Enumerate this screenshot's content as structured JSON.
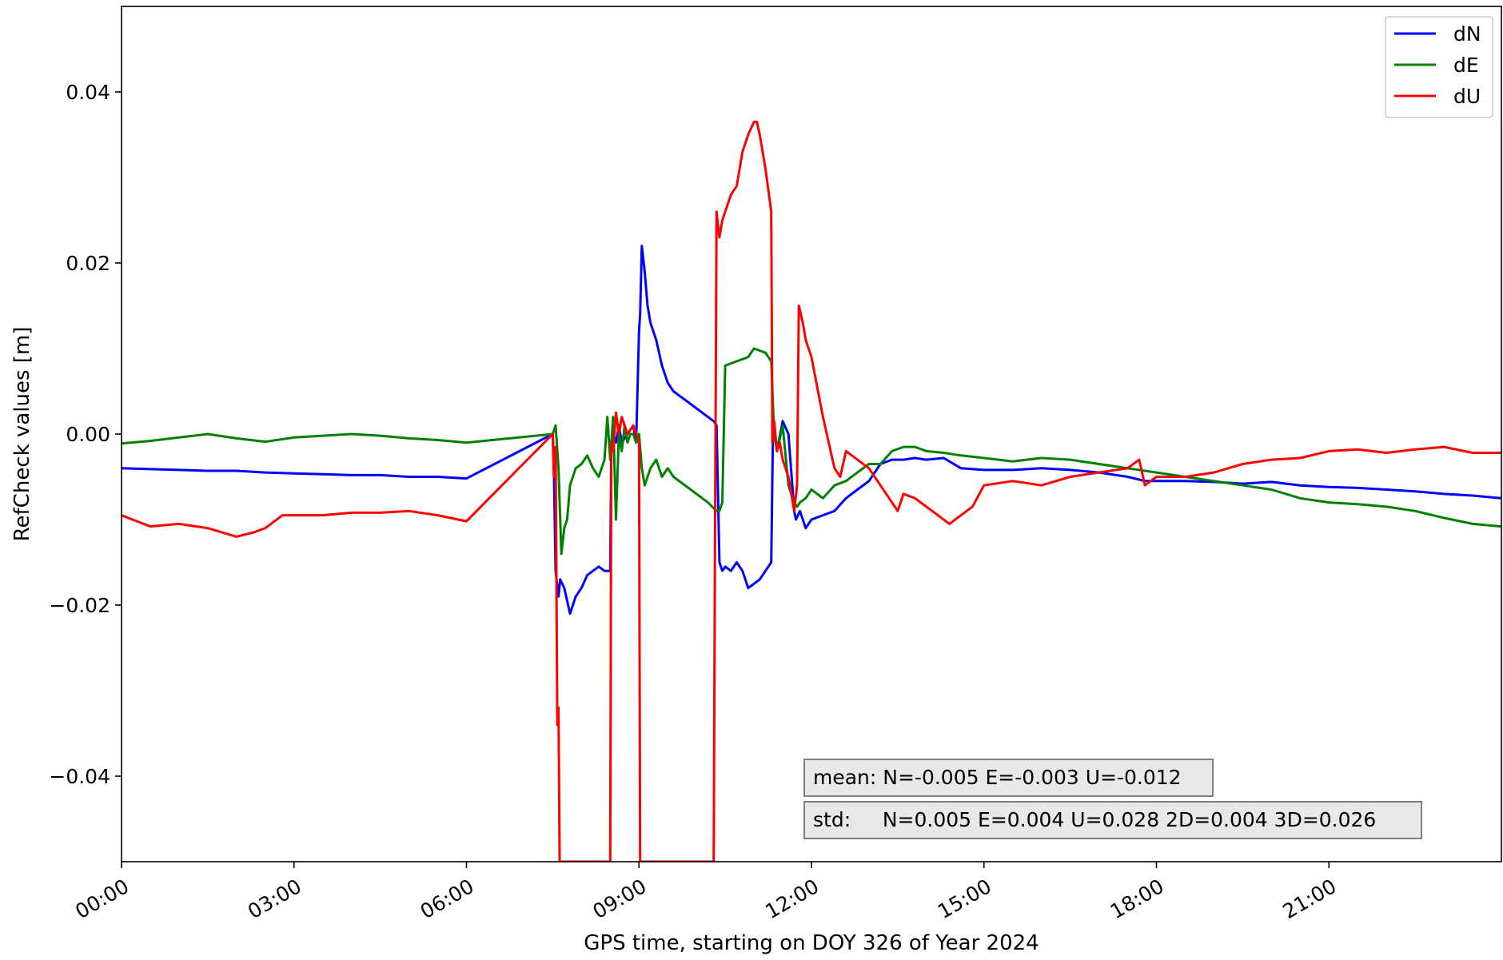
{
  "chart_data": {
    "type": "line",
    "xlabel": "GPS time, starting on DOY 326 of Year 2024",
    "ylabel": "RefCheck values [m]",
    "x_unit": "hours",
    "xlim": [
      0,
      24
    ],
    "ylim": [
      -0.05,
      0.05
    ],
    "x_ticks": [
      0,
      3,
      6,
      9,
      12,
      15,
      18,
      21
    ],
    "x_tick_labels": [
      "00:00",
      "03:00",
      "06:00",
      "09:00",
      "12:00",
      "15:00",
      "18:00",
      "21:00"
    ],
    "y_ticks": [
      -0.04,
      -0.02,
      0.0,
      0.02,
      0.04
    ],
    "y_tick_labels": [
      "−0.04",
      "−0.02",
      "0.00",
      "0.02",
      "0.04"
    ],
    "grid": false,
    "legend_position": "top-right",
    "series": [
      {
        "name": "dN",
        "color": "#0000ff",
        "x": [
          0,
          0.5,
          1,
          1.5,
          2,
          2.5,
          3,
          3.5,
          4,
          4.5,
          5,
          5.5,
          6.0,
          7.5,
          7.52,
          7.55,
          7.6,
          7.63,
          7.7,
          7.8,
          7.9,
          8.0,
          8.1,
          8.2,
          8.3,
          8.4,
          8.5,
          8.52,
          8.55,
          8.6,
          8.65,
          8.7,
          8.8,
          8.9,
          8.95,
          9.0,
          9.02,
          9.05,
          9.1,
          9.15,
          9.2,
          9.3,
          9.4,
          9.5,
          9.6,
          9.7,
          9.8,
          10.0,
          10.2,
          10.3,
          10.35,
          10.4,
          10.45,
          10.5,
          10.6,
          10.7,
          10.8,
          10.9,
          11.0,
          11.1,
          11.2,
          11.3,
          11.33,
          11.35,
          11.4,
          11.5,
          11.6,
          11.7,
          11.73,
          11.8,
          11.9,
          12.0,
          12.2,
          12.4,
          12.6,
          12.8,
          13.0,
          13.2,
          13.4,
          13.6,
          13.8,
          14.0,
          14.3,
          14.6,
          15.0,
          15.5,
          16.0,
          16.5,
          17.0,
          17.5,
          17.8,
          18.0,
          18.5,
          19.0,
          19.5,
          20.0,
          20.5,
          21.0,
          21.5,
          22.0,
          22.5,
          23.0,
          23.5,
          23.99
        ],
        "y": [
          -0.004,
          -0.0041,
          -0.0042,
          -0.0043,
          -0.0043,
          -0.0045,
          -0.0046,
          -0.0047,
          -0.0048,
          -0.0048,
          -0.005,
          -0.005,
          -0.0052,
          0.0,
          -0.004,
          -0.016,
          -0.019,
          -0.017,
          -0.018,
          -0.021,
          -0.019,
          -0.018,
          -0.0165,
          -0.016,
          -0.0155,
          -0.016,
          -0.016,
          -0.001,
          0.0,
          -0.001,
          0.001,
          -0.001,
          0.0,
          0.001,
          -0.001,
          0.012,
          0.014,
          0.022,
          0.019,
          0.015,
          0.013,
          0.011,
          0.008,
          0.006,
          0.005,
          0.0045,
          0.004,
          0.003,
          0.002,
          0.0015,
          0.001,
          -0.015,
          -0.016,
          -0.0155,
          -0.016,
          -0.015,
          -0.016,
          -0.018,
          -0.0175,
          -0.017,
          -0.016,
          -0.015,
          0.0,
          0.001,
          -0.002,
          0.0015,
          0.0,
          -0.009,
          -0.01,
          -0.009,
          -0.011,
          -0.01,
          -0.0095,
          -0.009,
          -0.0075,
          -0.0065,
          -0.0055,
          -0.0035,
          -0.003,
          -0.003,
          -0.0028,
          -0.003,
          -0.0028,
          -0.004,
          -0.0042,
          -0.0042,
          -0.004,
          -0.0042,
          -0.0045,
          -0.005,
          -0.0055,
          -0.0055,
          -0.0055,
          -0.0056,
          -0.0058,
          -0.0056,
          -0.006,
          -0.0062,
          -0.0063,
          -0.0065,
          -0.0067,
          -0.007,
          -0.0072,
          -0.0075
        ]
      },
      {
        "name": "dE",
        "color": "#008000",
        "x": [
          0,
          0.5,
          1,
          1.5,
          2,
          2.5,
          3,
          3.5,
          4,
          4.5,
          5,
          5.5,
          6.0,
          7.5,
          7.55,
          7.6,
          7.65,
          7.7,
          7.75,
          7.8,
          7.9,
          8.0,
          8.1,
          8.2,
          8.3,
          8.4,
          8.45,
          8.5,
          8.55,
          8.6,
          8.65,
          8.7,
          8.75,
          8.8,
          8.85,
          8.9,
          8.95,
          9.0,
          9.05,
          9.1,
          9.2,
          9.3,
          9.4,
          9.5,
          9.6,
          9.8,
          10.0,
          10.2,
          10.35,
          10.4,
          10.45,
          10.5,
          10.7,
          10.9,
          11.0,
          11.2,
          11.3,
          11.35,
          11.4,
          11.5,
          11.6,
          11.7,
          11.75,
          11.8,
          11.9,
          12.0,
          12.2,
          12.4,
          12.6,
          12.8,
          13.0,
          13.2,
          13.4,
          13.6,
          13.8,
          14.0,
          14.3,
          14.6,
          15.0,
          15.5,
          16.0,
          16.5,
          17.0,
          17.5,
          18.0,
          18.5,
          19.0,
          19.5,
          20.0,
          20.5,
          21.0,
          21.5,
          22.0,
          22.5,
          23.0,
          23.5,
          23.99
        ],
        "y": [
          -0.0011,
          -0.0008,
          -0.0004,
          0.0,
          -0.0005,
          -0.0009,
          -0.0004,
          -0.0002,
          0.0,
          -0.0002,
          -0.0005,
          -0.0007,
          -0.001,
          0.0,
          0.001,
          -0.004,
          -0.014,
          -0.011,
          -0.01,
          -0.006,
          -0.004,
          -0.0035,
          -0.0025,
          -0.004,
          -0.005,
          -0.003,
          0.002,
          -0.003,
          0.002,
          -0.01,
          0.0,
          -0.002,
          0.001,
          -0.001,
          0.0,
          0.0,
          -0.001,
          0.0,
          -0.004,
          -0.006,
          -0.004,
          -0.003,
          -0.005,
          -0.004,
          -0.005,
          -0.006,
          -0.007,
          -0.008,
          -0.009,
          -0.009,
          -0.008,
          0.008,
          0.0085,
          0.009,
          0.01,
          0.0095,
          0.0085,
          0.0,
          -0.002,
          0.001,
          -0.006,
          -0.008,
          -0.0085,
          -0.008,
          -0.0075,
          -0.0065,
          -0.0075,
          -0.006,
          -0.0055,
          -0.0045,
          -0.0035,
          -0.0035,
          -0.002,
          -0.0015,
          -0.0015,
          -0.002,
          -0.0022,
          -0.0025,
          -0.0028,
          -0.0032,
          -0.0028,
          -0.003,
          -0.0035,
          -0.004,
          -0.0045,
          -0.005,
          -0.0055,
          -0.006,
          -0.0065,
          -0.0075,
          -0.008,
          -0.0082,
          -0.0085,
          -0.009,
          -0.0098,
          -0.0105,
          -0.0108
        ]
      },
      {
        "name": "dU",
        "color": "#ff0000",
        "x": [
          0,
          0.5,
          1,
          1.5,
          2,
          2.3,
          2.5,
          2.8,
          3.0,
          3.5,
          4,
          4.5,
          5,
          5.5,
          6.0,
          7.5,
          7.52,
          7.55,
          7.58,
          7.6,
          7.62,
          7.65,
          8.5,
          8.52,
          8.55,
          8.6,
          8.65,
          8.7,
          8.8,
          8.9,
          8.95,
          9.0,
          9.02,
          10.3,
          10.32,
          10.35,
          10.38,
          10.4,
          10.45,
          10.5,
          10.6,
          10.7,
          10.8,
          10.9,
          11.0,
          11.05,
          11.1,
          11.2,
          11.3,
          11.32,
          11.35,
          11.4,
          11.45,
          11.5,
          11.55,
          11.6,
          11.7,
          11.75,
          11.78,
          11.8,
          11.85,
          11.9,
          12.0,
          12.1,
          12.2,
          12.3,
          12.4,
          12.5,
          12.6,
          12.8,
          13.0,
          13.2,
          13.4,
          13.5,
          13.6,
          13.8,
          14.0,
          14.2,
          14.4,
          14.6,
          14.8,
          15.0,
          15.5,
          16.0,
          16.5,
          17.0,
          17.5,
          17.7,
          17.8,
          18.0,
          18.5,
          19.0,
          19.5,
          20.0,
          20.5,
          21.0,
          21.5,
          22.0,
          22.5,
          23.0,
          23.5,
          23.99
        ],
        "y": [
          -0.0095,
          -0.0108,
          -0.0105,
          -0.011,
          -0.012,
          -0.0115,
          -0.011,
          -0.0095,
          -0.0095,
          -0.0095,
          -0.0092,
          -0.0092,
          -0.009,
          -0.0095,
          -0.0102,
          0.0,
          -0.005,
          -0.0015,
          -0.034,
          -0.032,
          -0.05,
          -0.05,
          -0.05,
          -0.001,
          -0.002,
          0.0025,
          0.0,
          0.002,
          0.0,
          0.001,
          0.0,
          -0.001,
          -0.05,
          -0.05,
          -0.016,
          0.026,
          0.024,
          0.023,
          0.025,
          0.026,
          0.028,
          0.029,
          0.033,
          0.035,
          0.0365,
          0.0365,
          0.035,
          0.031,
          0.026,
          -0.001,
          0.0015,
          -0.002,
          -0.001,
          -0.003,
          -0.004,
          -0.005,
          -0.009,
          -0.006,
          0.015,
          0.0145,
          0.013,
          0.011,
          0.009,
          0.0055,
          0.002,
          -0.001,
          -0.004,
          -0.005,
          -0.002,
          -0.003,
          -0.004,
          -0.006,
          -0.008,
          -0.009,
          -0.007,
          -0.0075,
          -0.0085,
          -0.0095,
          -0.0105,
          -0.0095,
          -0.0085,
          -0.006,
          -0.0055,
          -0.006,
          -0.005,
          -0.0045,
          -0.004,
          -0.003,
          -0.006,
          -0.005,
          -0.005,
          -0.0045,
          -0.0035,
          -0.003,
          -0.0028,
          -0.002,
          -0.0018,
          -0.0022,
          -0.0018,
          -0.0015,
          -0.0022,
          -0.0022
        ]
      }
    ],
    "annotations": [
      "mean: N=-0.005 E=-0.003 U=-0.012",
      "std:     N=0.005 E=0.004 U=0.028 2D=0.004 3D=0.026"
    ]
  }
}
